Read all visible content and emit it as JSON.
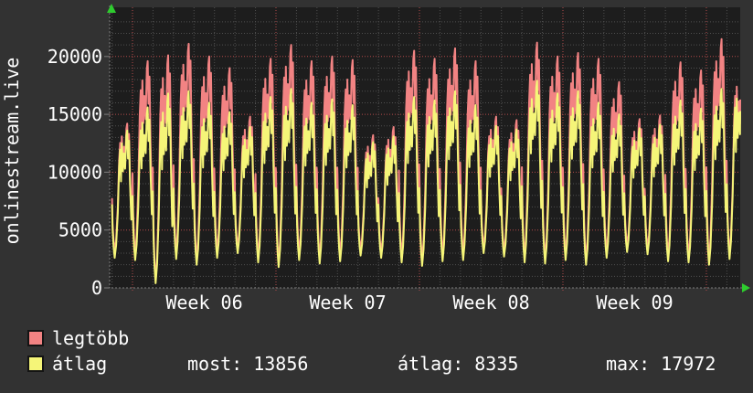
{
  "chart_data": {
    "type": "line",
    "title": "onlinestream.live",
    "ylabel_text": "onlinestream.live",
    "ylim": [
      0,
      23800
    ],
    "yticks": [
      0,
      5000,
      10000,
      15000,
      20000
    ],
    "x_week_labels": [
      "Week 06",
      "Week 07",
      "Week 08",
      "Week 09"
    ],
    "grid": {
      "minor_y_step": 1000,
      "major_y_step": 5000,
      "minor_x_unit": "day",
      "major_x_unit": "week",
      "days_per_week": 7
    },
    "legend_position": "bottom-left",
    "series": [
      {
        "name": "legtöbb",
        "role": "daily_max",
        "color": "#f28383"
      },
      {
        "name": "átlag",
        "role": "daily_avg",
        "color": "#f5f578"
      }
    ],
    "days": [
      {
        "max": 14200,
        "avg": 13600,
        "min": 2600
      },
      {
        "max": 19600,
        "avg": 15600,
        "min": 2400
      },
      {
        "max": 20100,
        "avg": 16800,
        "min": 400
      },
      {
        "max": 21100,
        "avg": 17000,
        "min": 2500
      },
      {
        "max": 20000,
        "avg": 16000,
        "min": 2000
      },
      {
        "max": 19000,
        "avg": 15200,
        "min": 2600
      },
      {
        "max": 14800,
        "avg": 13900,
        "min": 3000
      },
      {
        "max": 19800,
        "avg": 16500,
        "min": 2200
      },
      {
        "max": 21000,
        "avg": 17200,
        "min": 1800
      },
      {
        "max": 19600,
        "avg": 16000,
        "min": 2400
      },
      {
        "max": 20000,
        "avg": 16300,
        "min": 2100
      },
      {
        "max": 19700,
        "avg": 15800,
        "min": 2300
      },
      {
        "max": 13200,
        "avg": 12600,
        "min": 2800
      },
      {
        "max": 13900,
        "avg": 13100,
        "min": 2600
      },
      {
        "max": 20500,
        "avg": 16500,
        "min": 2200
      },
      {
        "max": 19800,
        "avg": 16200,
        "min": 1900
      },
      {
        "max": 20700,
        "avg": 17000,
        "min": 2300
      },
      {
        "max": 19600,
        "avg": 15800,
        "min": 2400
      },
      {
        "max": 14800,
        "avg": 14000,
        "min": 3000
      },
      {
        "max": 14500,
        "avg": 13700,
        "min": 2700
      },
      {
        "max": 21200,
        "avg": 17900,
        "min": 2200
      },
      {
        "max": 20000,
        "avg": 16800,
        "min": 2100
      },
      {
        "max": 20300,
        "avg": 17000,
        "min": 2400
      },
      {
        "max": 19800,
        "avg": 16000,
        "min": 2000
      },
      {
        "max": 17800,
        "avg": 15000,
        "min": 2600
      },
      {
        "max": 14600,
        "avg": 13800,
        "min": 3100
      },
      {
        "max": 14900,
        "avg": 14100,
        "min": 2900
      },
      {
        "max": 19500,
        "avg": 16200,
        "min": 2300
      },
      {
        "max": 18800,
        "avg": 15500,
        "min": 2200
      },
      {
        "max": 21500,
        "avg": 17200,
        "min": 2000
      },
      {
        "max": 19000,
        "avg": 17900,
        "min": 2500
      }
    ],
    "colors": {
      "outer_bg": "#323232",
      "plot_bg": "#1d1d1d",
      "minor_grid": "#4f4f4f",
      "major_grid": "#b34a4a",
      "axis": "#7d7d7d",
      "arrow": "#2ecc2e",
      "text": "#ffffff"
    }
  },
  "legend": [
    {
      "label": "legtöbb",
      "color": "#f28383"
    },
    {
      "label": "átlag",
      "color": "#f5f578"
    }
  ],
  "stats": [
    {
      "label": "most:",
      "value": "13856"
    },
    {
      "label": "átlag:",
      "value": "8335"
    },
    {
      "label": "max:",
      "value": "17972"
    }
  ]
}
